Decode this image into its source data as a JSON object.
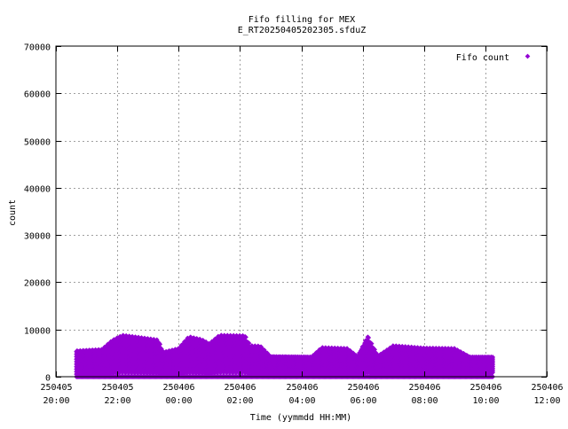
{
  "chart_data": {
    "type": "scatter",
    "title_line1": "Fifo filling for MEX",
    "title_line2": "E_RT20250405202305.sfduZ",
    "xlabel": "Time (yymmdd HH:MM)",
    "ylabel": "count",
    "legend_position": "top-right",
    "grid": true,
    "marker_color": "#9400d3",
    "x_axis": {
      "type": "datetime",
      "range": [
        "2025-04-05 20:00",
        "2025-04-06 12:00"
      ],
      "ticks": [
        {
          "date": "250405",
          "time": "20:00"
        },
        {
          "date": "250405",
          "time": "22:00"
        },
        {
          "date": "250406",
          "time": "00:00"
        },
        {
          "date": "250406",
          "time": "02:00"
        },
        {
          "date": "250406",
          "time": "04:00"
        },
        {
          "date": "250406",
          "time": "06:00"
        },
        {
          "date": "250406",
          "time": "08:00"
        },
        {
          "date": "250406",
          "time": "10:00"
        },
        {
          "date": "250406",
          "time": "12:00"
        }
      ]
    },
    "y_axis": {
      "range": [
        0,
        70000
      ],
      "ticks": [
        "0",
        "10000",
        "20000",
        "30000",
        "40000",
        "50000",
        "60000",
        "70000"
      ]
    },
    "series": [
      {
        "name": "Fifo count",
        "data_range": {
          "start": "2025-04-05 20:40",
          "end": "2025-04-06 10:15"
        },
        "levels": [
          0,
          800,
          1600,
          2400,
          3200,
          4000,
          4800,
          5600,
          6400,
          7200,
          8000
        ],
        "envelope": [
          {
            "x": "2025-04-05 20:40",
            "y": 5300
          },
          {
            "x": "2025-04-05 21:30",
            "y": 5600
          },
          {
            "x": "2025-04-05 21:50",
            "y": 7500
          },
          {
            "x": "2025-04-05 22:10",
            "y": 8600
          },
          {
            "x": "2025-04-05 22:40",
            "y": 8200
          },
          {
            "x": "2025-04-05 23:20",
            "y": 7600
          },
          {
            "x": "2025-04-05 23:30",
            "y": 5000
          },
          {
            "x": "2025-04-06 00:00",
            "y": 5800
          },
          {
            "x": "2025-04-06 00:20",
            "y": 8300
          },
          {
            "x": "2025-04-06 00:45",
            "y": 7700
          },
          {
            "x": "2025-04-06 01:00",
            "y": 6800
          },
          {
            "x": "2025-04-06 01:20",
            "y": 8600
          },
          {
            "x": "2025-04-06 02:10",
            "y": 8500
          },
          {
            "x": "2025-04-06 02:20",
            "y": 6400
          },
          {
            "x": "2025-04-06 02:40",
            "y": 6300
          },
          {
            "x": "2025-04-06 03:00",
            "y": 4100
          },
          {
            "x": "2025-04-06 04:20",
            "y": 4000
          },
          {
            "x": "2025-04-06 04:40",
            "y": 6000
          },
          {
            "x": "2025-04-06 05:30",
            "y": 5800
          },
          {
            "x": "2025-04-06 05:50",
            "y": 4100
          },
          {
            "x": "2025-04-06 06:10",
            "y": 8400
          },
          {
            "x": "2025-04-06 06:30",
            "y": 4200
          },
          {
            "x": "2025-04-06 07:00",
            "y": 6400
          },
          {
            "x": "2025-04-06 08:00",
            "y": 5900
          },
          {
            "x": "2025-04-06 09:00",
            "y": 5800
          },
          {
            "x": "2025-04-06 09:30",
            "y": 4000
          },
          {
            "x": "2025-04-06 10:15",
            "y": 4000
          }
        ]
      }
    ]
  }
}
